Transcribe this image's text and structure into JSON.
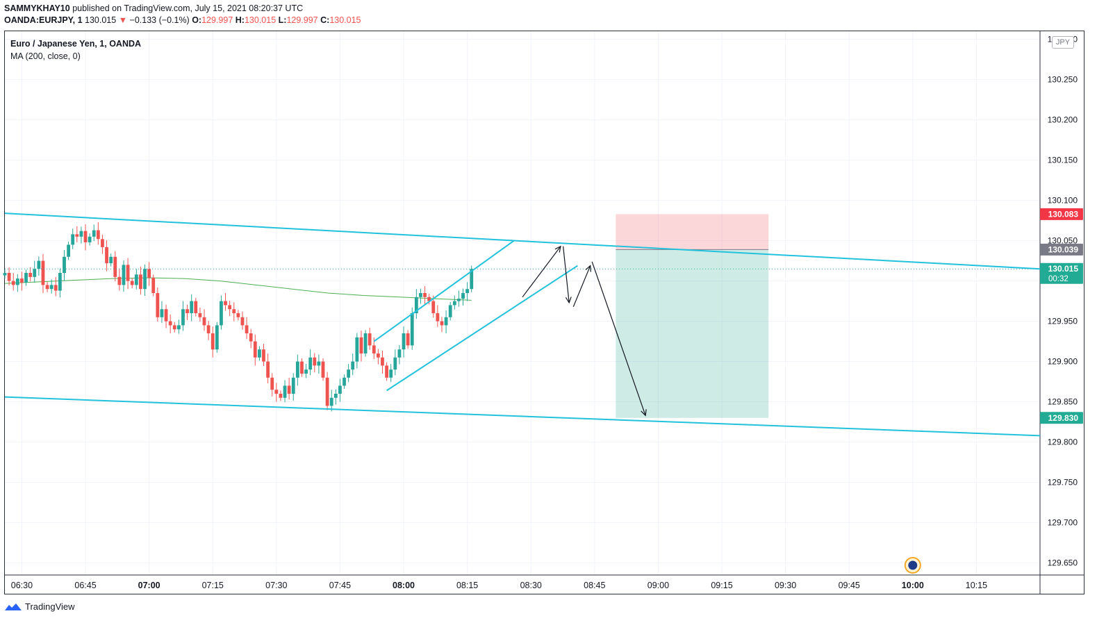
{
  "header": {
    "publisher": "SAMMYKHAY10",
    "published_text": "published on TradingView.com, July 15, 2021 08:20:37 UTC"
  },
  "ohlc_bar": {
    "ticker": "OANDA:EURJPY, 1",
    "last": "130.015",
    "arrow": "▼",
    "change": "−0.133 (−0.1%)",
    "o_label": "O:",
    "o_value": "129.997",
    "h_label": "H:",
    "h_value": "130.015",
    "l_label": "L:",
    "l_value": "129.997",
    "c_label": "C:",
    "c_value": "130.015",
    "value_color": "#ef5350"
  },
  "legend": {
    "symbol": "Euro / Japanese Yen, 1, OANDA",
    "indicator": "MA (200, close, 0)"
  },
  "currency_badge": "JPY",
  "footer": {
    "brand": "TradingView",
    "logo_icon": "tradingview-logo-icon"
  },
  "chart_data": {
    "type": "candlestick",
    "interval_minutes": 1,
    "x_ticks": [
      "06:30",
      "06:45",
      "07:00",
      "07:15",
      "07:30",
      "07:45",
      "08:00",
      "08:15",
      "08:30",
      "08:45",
      "09:00",
      "09:15",
      "09:30",
      "09:45",
      "10:00",
      "10:15"
    ],
    "x_ticks_bold": [
      "07:00",
      "08:00",
      "10:00"
    ],
    "y_ticks": [
      "130.300",
      "130.250",
      "130.200",
      "130.150",
      "130.100",
      "130.050",
      "130.000",
      "129.950",
      "129.900",
      "129.850",
      "129.800",
      "129.750",
      "129.700",
      "129.650"
    ],
    "ylim": [
      129.635,
      130.31
    ],
    "xlim_minutes_from_0630": [
      -4,
      240
    ],
    "grid": true,
    "colors": {
      "up": "#26a69a",
      "down": "#ef5350",
      "trendline": "#22c1dc",
      "ma": "#4caf50",
      "arrow": "#131722"
    },
    "price_labels": [
      {
        "value": "130.083",
        "color": "#f23645"
      },
      {
        "value": "130.039",
        "color": "#787b86"
      },
      {
        "value": "130.015",
        "sub": "00:32",
        "color": "#22ab94"
      },
      {
        "value": "129.830",
        "color": "#22ab94"
      }
    ],
    "close_series": [
      130.01,
      130.0,
      129.995,
      130.003,
      129.998,
      130.01,
      130.005,
      130.015,
      130.025,
      129.995,
      129.99,
      129.995,
      129.988,
      130.01,
      130.03,
      130.045,
      130.058,
      130.055,
      130.062,
      130.048,
      130.055,
      130.063,
      130.052,
      130.042,
      130.022,
      130.03,
      130.005,
      129.995,
      130.02,
      130.0,
      129.995,
      130.008,
      129.99,
      130.015,
      130.004,
      129.985,
      129.955,
      129.965,
      129.95,
      129.945,
      129.94,
      129.945,
      129.965,
      129.96,
      129.975,
      129.96,
      129.955,
      129.945,
      129.935,
      129.915,
      129.945,
      129.975,
      129.97,
      129.965,
      129.96,
      129.955,
      129.945,
      129.935,
      129.925,
      129.905,
      129.915,
      129.9,
      129.88,
      129.865,
      129.86,
      129.855,
      129.87,
      129.86,
      129.88,
      129.9,
      129.885,
      129.89,
      129.905,
      129.895,
      129.9,
      129.88,
      129.845,
      129.855,
      129.86,
      129.87,
      129.88,
      129.89,
      129.9,
      129.93,
      129.91,
      129.935,
      129.92,
      129.91,
      129.905,
      129.895,
      129.88,
      129.89,
      129.905,
      129.915,
      129.935,
      129.92,
      129.96,
      129.98,
      129.985,
      129.98,
      129.975,
      129.96,
      129.95,
      129.945,
      129.955,
      129.97,
      129.975,
      129.978,
      129.985,
      129.99,
      130.015
    ],
    "ma200": [
      129.997,
      129.999,
      130.001,
      130.003,
      130.004,
      130.003,
      130.0,
      129.995,
      129.99,
      129.985,
      129.982,
      129.98,
      129.978,
      129.976
    ],
    "trendlines": [
      {
        "name": "channel-upper",
        "from": [
          -4,
          130.084
        ],
        "to": [
          240,
          130.015
        ]
      },
      {
        "name": "channel-lower",
        "from": [
          -4,
          129.856
        ],
        "to": [
          240,
          129.808
        ]
      },
      {
        "name": "rising-upper",
        "from": [
          83,
          129.925
        ],
        "to": [
          116,
          130.05
        ]
      },
      {
        "name": "rising-lower",
        "from": [
          86,
          129.864
        ],
        "to": [
          131,
          130.019
        ]
      }
    ],
    "position": {
      "entry": 130.039,
      "stop": 130.083,
      "target": 129.83,
      "from_min": 140,
      "to_min": 176
    },
    "projection_path": [
      [
        118,
        129.98
      ],
      [
        127,
        130.043
      ],
      [
        129,
        129.973
      ],
      [
        130,
        129.968
      ],
      [
        134,
        130.019
      ],
      [
        134,
        130.024
      ],
      [
        147,
        129.833
      ]
    ]
  }
}
